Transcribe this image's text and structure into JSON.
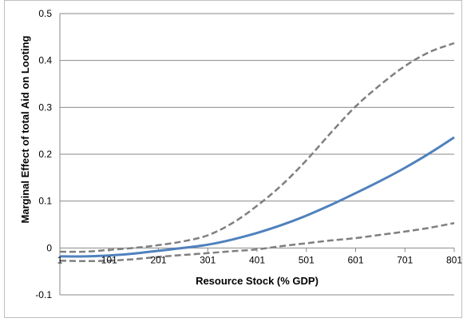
{
  "chart_data": {
    "type": "line",
    "title": "",
    "xlabel": "Resource Stock (% GDP)",
    "ylabel": "Marginal Effect of total Aid on Looting",
    "x_ticks": [
      "1",
      "101",
      "201",
      "301",
      "401",
      "501",
      "601",
      "701",
      "801"
    ],
    "y_ticks": [
      "0.5",
      "0.4",
      "0.3",
      "0.2",
      "0.1",
      "0",
      "-0.1"
    ],
    "xlim": [
      1,
      801
    ],
    "ylim": [
      -0.1,
      0.5
    ],
    "grid": "horizontal",
    "legend": "none",
    "x": [
      1,
      51,
      101,
      151,
      201,
      251,
      301,
      351,
      401,
      451,
      501,
      551,
      601,
      651,
      701,
      751,
      801
    ],
    "series": [
      {
        "style": "solid",
        "color": "#4f81bd",
        "values": [
          -0.018,
          -0.018,
          -0.016,
          -0.012,
          -0.006,
          0.0,
          0.007,
          0.018,
          0.032,
          0.049,
          0.069,
          0.092,
          0.117,
          0.143,
          0.171,
          0.202,
          0.236
        ]
      },
      {
        "style": "dashed",
        "color": "#7f7f7f",
        "values": [
          -0.008,
          -0.008,
          -0.004,
          0.0,
          0.006,
          0.014,
          0.027,
          0.053,
          0.09,
          0.134,
          0.187,
          0.246,
          0.302,
          0.348,
          0.388,
          0.418,
          0.437
        ]
      },
      {
        "style": "dashed",
        "color": "#7f7f7f",
        "values": [
          -0.027,
          -0.028,
          -0.027,
          -0.024,
          -0.019,
          -0.015,
          -0.011,
          -0.007,
          -0.003,
          0.004,
          0.01,
          0.016,
          0.021,
          0.028,
          0.035,
          0.043,
          0.053
        ]
      }
    ]
  }
}
